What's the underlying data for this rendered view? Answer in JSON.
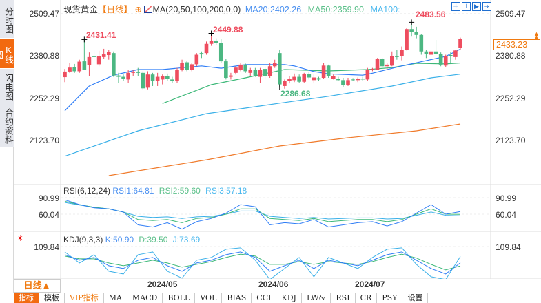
{
  "sidebar": {
    "tabs": [
      {
        "label": "分时图"
      },
      {
        "label": "K线图",
        "active": true
      },
      {
        "label": "闪电图"
      },
      {
        "label": "合约资料"
      }
    ]
  },
  "header": {
    "title": "现货黄金",
    "period_tag": "【日线】",
    "ma_label": "MA(20,50,100,200,0,0)",
    "ma20": "MA20:2402.26",
    "ma50": "MA50:2359.90",
    "ma100": "MA100:"
  },
  "price_axis": {
    "ticks": [
      "2509.47",
      "2380.88",
      "2252.29",
      "2123.70"
    ],
    "current": "2433.23"
  },
  "annotations": {
    "high1": "2431.41",
    "high2": "2449.88",
    "low1": "2286.68",
    "high3": "2483.56"
  },
  "rsi": {
    "label": "RSI(6,12,24)",
    "rsi1": "RSI1:64.81",
    "rsi2": "RSI2:59.60",
    "rsi3": "RSI3:57.18",
    "ticks": [
      "90.99",
      "60.04"
    ]
  },
  "kdj": {
    "label": "KDJ(9,3,3)",
    "k": "K:50.90",
    "d": "D:39.50",
    "j": "J:73.69",
    "ticks": [
      "109.84"
    ]
  },
  "period_button": "日线▲",
  "dates": [
    "2024/05",
    "2024/06",
    "2024/07"
  ],
  "toolbar": [
    "指标",
    "模板",
    "VIP指标",
    "MA",
    "MACD",
    "BOLL",
    "VOL",
    "BIAS",
    "CCI",
    "KDJ",
    "LW&",
    "RSI",
    "CR",
    "PSY",
    "设置"
  ],
  "colors": {
    "up": "#ee4d5f",
    "down": "#4cb782",
    "ma20": "#2f7df6",
    "ma50": "#3cb878",
    "ma100": "#3ab0e8",
    "ma200": "#f07a2a",
    "accent": "#f26a10"
  },
  "chart_data": {
    "type": "candlestick",
    "ylim": [
      2020,
      2530
    ],
    "candles": [
      [
        2317,
        2342,
        2302,
        2334
      ],
      [
        2334,
        2360,
        2330,
        2346
      ],
      [
        2348,
        2357,
        2330,
        2335
      ],
      [
        2335,
        2370,
        2330,
        2364
      ],
      [
        2365,
        2431.41,
        2338,
        2340
      ],
      [
        2353,
        2392,
        2320,
        2378
      ],
      [
        2381,
        2398,
        2367,
        2378
      ],
      [
        2356,
        2397,
        2350,
        2380
      ],
      [
        2378,
        2403,
        2372,
        2386
      ],
      [
        2384,
        2400,
        2370,
        2393
      ],
      [
        2390,
        2395,
        2318,
        2322
      ],
      [
        2322,
        2330,
        2300,
        2318
      ],
      [
        2318,
        2325,
        2305,
        2313
      ],
      [
        2310,
        2340,
        2300,
        2330
      ],
      [
        2330,
        2340,
        2320,
        2333
      ],
      [
        2333,
        2345,
        2320,
        2330
      ],
      [
        2330,
        2335,
        2280,
        2283
      ],
      [
        2285,
        2335,
        2280,
        2325
      ],
      [
        2325,
        2330,
        2290,
        2305
      ],
      [
        2305,
        2330,
        2290,
        2318
      ],
      [
        2310,
        2325,
        2295,
        2320
      ],
      [
        2320,
        2328,
        2305,
        2312
      ],
      [
        2310,
        2318,
        2300,
        2305
      ],
      [
        2305,
        2345,
        2300,
        2340
      ],
      [
        2340,
        2370,
        2335,
        2360
      ],
      [
        2362,
        2365,
        2335,
        2340
      ],
      [
        2340,
        2360,
        2335,
        2356
      ],
      [
        2356,
        2390,
        2350,
        2385
      ],
      [
        2390,
        2395,
        2375,
        2386
      ],
      [
        2390,
        2425,
        2385,
        2418
      ],
      [
        2418,
        2449.88,
        2412,
        2428
      ],
      [
        2428,
        2435,
        2415,
        2420
      ],
      [
        2420,
        2432,
        2360,
        2365
      ],
      [
        2365,
        2372,
        2310,
        2315
      ],
      [
        2318,
        2330,
        2310,
        2322
      ],
      [
        2330,
        2350,
        2325,
        2346
      ],
      [
        2340,
        2360,
        2335,
        2355
      ],
      [
        2355,
        2358,
        2330,
        2335
      ],
      [
        2330,
        2345,
        2320,
        2338
      ],
      [
        2340,
        2345,
        2318,
        2322
      ],
      [
        2318,
        2345,
        2300,
        2340
      ],
      [
        2342,
        2350,
        2310,
        2320
      ],
      [
        2320,
        2360,
        2315,
        2350
      ],
      [
        2350,
        2370,
        2345,
        2360
      ],
      [
        2390,
        2400,
        2286.68,
        2295
      ],
      [
        2290,
        2310,
        2282,
        2305
      ],
      [
        2305,
        2320,
        2298,
        2312
      ],
      [
        2308,
        2328,
        2302,
        2318
      ],
      [
        2318,
        2325,
        2300,
        2303
      ],
      [
        2303,
        2330,
        2300,
        2326
      ],
      [
        2326,
        2334,
        2310,
        2316
      ],
      [
        2308,
        2325,
        2298,
        2316
      ],
      [
        2314,
        2318,
        2305,
        2310
      ],
      [
        2315,
        2360,
        2312,
        2352
      ],
      [
        2352,
        2355,
        2315,
        2320
      ],
      [
        2312,
        2325,
        2310,
        2320
      ],
      [
        2312,
        2318,
        2305,
        2308
      ],
      [
        2308,
        2315,
        2288,
        2292
      ],
      [
        2292,
        2315,
        2290,
        2308
      ],
      [
        2310,
        2314,
        2305,
        2308
      ],
      [
        2308,
        2316,
        2302,
        2312
      ],
      [
        2312,
        2318,
        2305,
        2310
      ],
      [
        2310,
        2345,
        2305,
        2340
      ],
      [
        2338,
        2345,
        2335,
        2342
      ],
      [
        2340,
        2375,
        2340,
        2372
      ],
      [
        2372,
        2375,
        2348,
        2350
      ],
      [
        2350,
        2360,
        2340,
        2355
      ],
      [
        2352,
        2395,
        2350,
        2380
      ],
      [
        2380,
        2400,
        2370,
        2378
      ],
      [
        2380,
        2410,
        2368,
        2400
      ],
      [
        2400,
        2466,
        2398,
        2463
      ],
      [
        2463,
        2483.56,
        2440,
        2455
      ],
      [
        2455,
        2470,
        2435,
        2445
      ],
      [
        2445,
        2448,
        2385,
        2395
      ],
      [
        2395,
        2400,
        2375,
        2388
      ],
      [
        2385,
        2400,
        2380,
        2395
      ],
      [
        2395,
        2430,
        2385,
        2388
      ],
      [
        2388,
        2392,
        2350,
        2355
      ],
      [
        2352,
        2385,
        2348,
        2380
      ],
      [
        2384,
        2392,
        2360,
        2380
      ],
      [
        2378,
        2400,
        2370,
        2398
      ],
      [
        2405,
        2437,
        2400,
        2433.23
      ]
    ],
    "ma": {
      "ma20": [
        [
          0,
          2215
        ],
        [
          5,
          2290
        ],
        [
          10,
          2323
        ],
        [
          15,
          2340
        ],
        [
          20,
          2340
        ],
        [
          28,
          2351
        ],
        [
          32,
          2344
        ],
        [
          37,
          2355
        ],
        [
          45,
          2355
        ],
        [
          47,
          2351
        ],
        [
          51,
          2334
        ],
        [
          54,
          2327
        ],
        [
          61,
          2323
        ],
        [
          63,
          2329
        ],
        [
          69,
          2351
        ],
        [
          74,
          2367
        ],
        [
          78,
          2380
        ],
        [
          81,
          2402.26
        ]
      ],
      "ma50": [
        [
          20,
          2237
        ],
        [
          30,
          2294
        ],
        [
          37,
          2315
        ],
        [
          45,
          2340
        ],
        [
          54,
          2336
        ],
        [
          62,
          2340
        ],
        [
          67,
          2346
        ],
        [
          72,
          2359
        ],
        [
          78,
          2357
        ],
        [
          81,
          2359.9
        ]
      ],
      "ma100": [
        [
          0,
          2077
        ],
        [
          15,
          2154
        ],
        [
          29,
          2206
        ],
        [
          44,
          2238
        ],
        [
          54,
          2259
        ],
        [
          67,
          2290
        ],
        [
          75,
          2315
        ],
        [
          81,
          2326
        ]
      ],
      "ma200": [
        [
          9,
          2018
        ],
        [
          29,
          2066
        ],
        [
          44,
          2108
        ],
        [
          58,
          2133
        ],
        [
          72,
          2154
        ],
        [
          81,
          2175
        ]
      ]
    },
    "rsi": {
      "step": 3,
      "rsi1": [
        87,
        78,
        72,
        70,
        64,
        40,
        36,
        44,
        32,
        46,
        52,
        62,
        78,
        74,
        40,
        44,
        42,
        50,
        36,
        40,
        44,
        46,
        38,
        46,
        62,
        78,
        60,
        64.81
      ],
      "rsi2": [
        84,
        78,
        73,
        70,
        64,
        50,
        48,
        50,
        44,
        52,
        54,
        60,
        70,
        70,
        52,
        50,
        48,
        52,
        46,
        48,
        50,
        50,
        46,
        50,
        60,
        70,
        60,
        59.6
      ],
      "rsi3": [
        82,
        77,
        73,
        70,
        64,
        56,
        54,
        55,
        52,
        55,
        56,
        60,
        66,
        66,
        56,
        54,
        52,
        54,
        51,
        52,
        53,
        53,
        51,
        52,
        58,
        64,
        58,
        57.18
      ]
    },
    "kdj": {
      "step": 3,
      "k": [
        80,
        60,
        70,
        40,
        30,
        60,
        70,
        40,
        20,
        50,
        60,
        80,
        90,
        70,
        20,
        40,
        60,
        30,
        60,
        50,
        40,
        60,
        80,
        90,
        60,
        30,
        10,
        50.9
      ],
      "d": [
        75,
        65,
        65,
        50,
        40,
        50,
        60,
        50,
        35,
        45,
        55,
        70,
        82,
        75,
        45,
        45,
        55,
        45,
        55,
        50,
        45,
        55,
        70,
        82,
        68,
        45,
        25,
        39.5
      ],
      "j": [
        90,
        50,
        80,
        20,
        10,
        80,
        90,
        20,
        -5,
        60,
        70,
        100,
        105,
        60,
        -10,
        30,
        70,
        0,
        70,
        50,
        30,
        70,
        100,
        105,
        45,
        0,
        -10,
        73.69
      ]
    }
  }
}
